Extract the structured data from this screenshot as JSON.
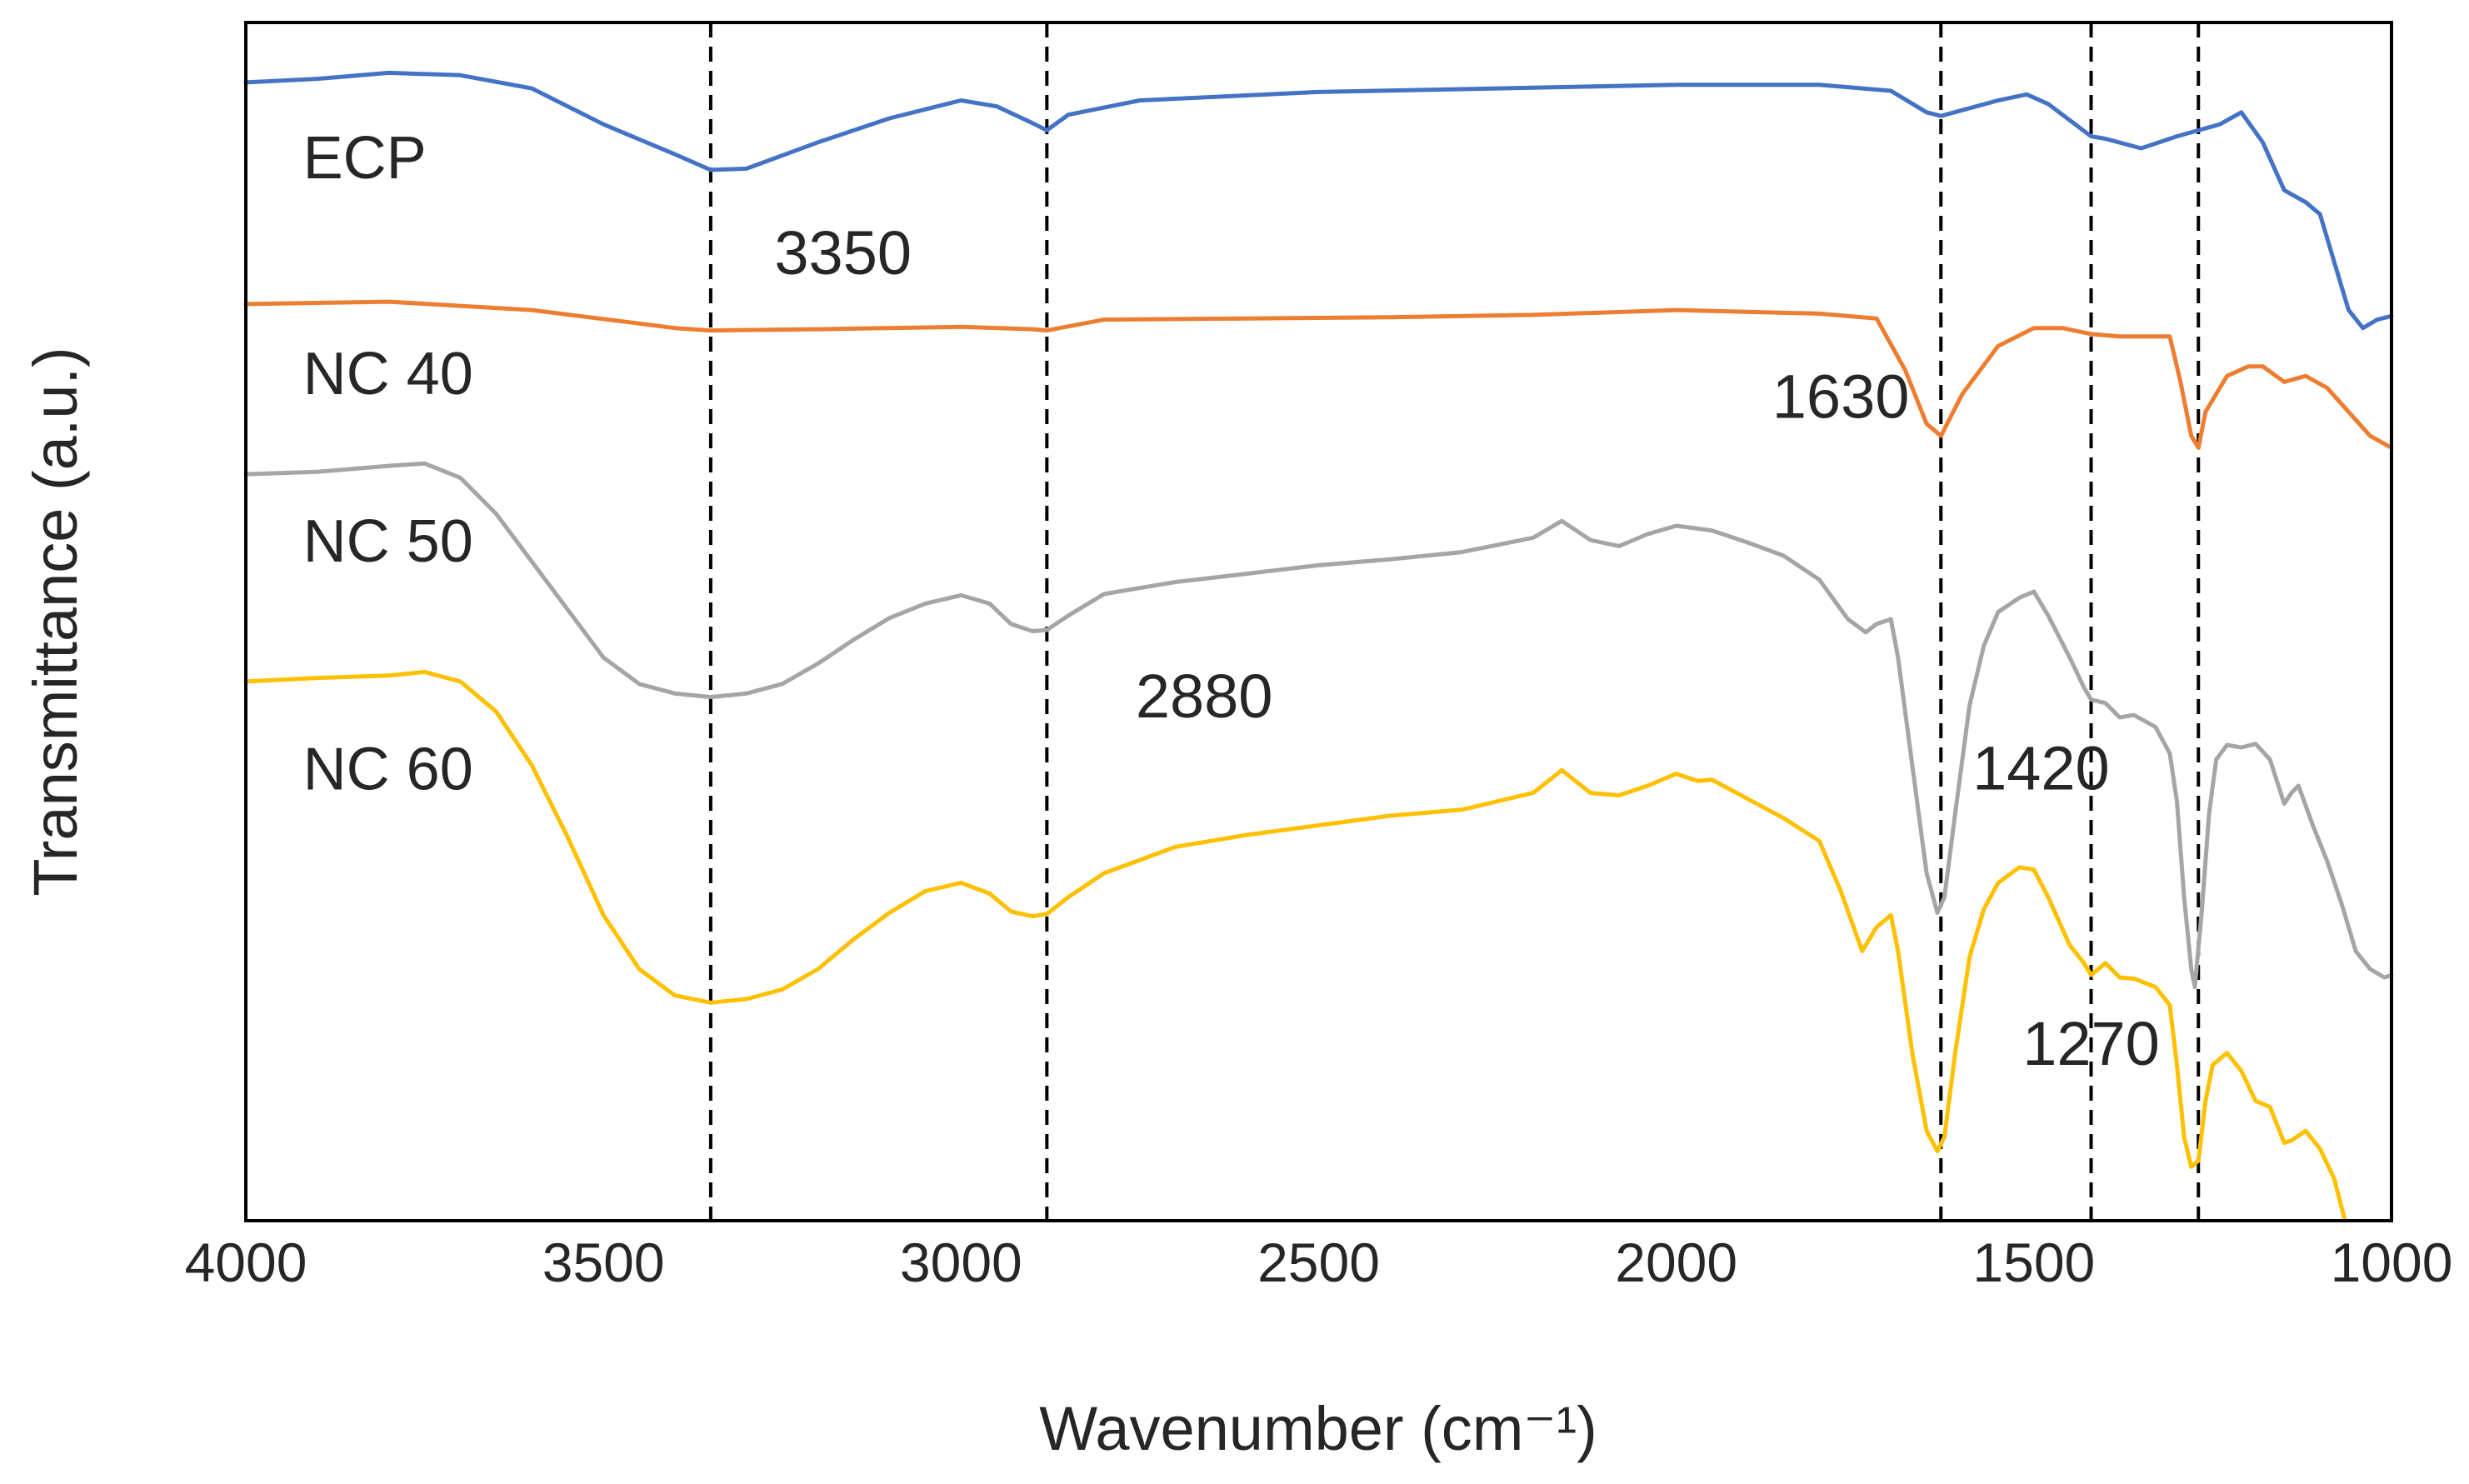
{
  "chart_data": {
    "type": "line",
    "title": "",
    "xlabel": "Wavenumber (cm⁻¹)",
    "ylabel": "Transmittance (a.u.)",
    "xlim": [
      4000,
      1000
    ],
    "x_reversed": true,
    "xticks": [
      4000,
      3500,
      3000,
      2500,
      2000,
      1500,
      1000
    ],
    "xtick_labels": [
      "4000",
      "3500",
      "3000",
      "2500",
      "2000",
      "1500",
      "1000"
    ],
    "ylim": [
      0,
      100
    ],
    "yticks_shown": false,
    "grid": false,
    "reference_lines": [
      3350,
      2880,
      1630,
      1420,
      1270
    ],
    "annotations": [
      {
        "text": "3350",
        "x": 3165,
        "y": 79
      },
      {
        "text": "2880",
        "x": 2660,
        "y": 42
      },
      {
        "text": "1630",
        "x": 1770,
        "y": 67
      },
      {
        "text": "1420",
        "x": 1490,
        "y": 36
      },
      {
        "text": "1270",
        "x": 1420,
        "y": 13
      }
    ],
    "series": [
      {
        "name": "ECP",
        "label": "ECP",
        "color": "#4472C4",
        "label_x": 3920,
        "label_y": 87,
        "points": [
          [
            4000,
            95
          ],
          [
            3900,
            95.3
          ],
          [
            3800,
            95.8
          ],
          [
            3700,
            95.6
          ],
          [
            3600,
            94.5
          ],
          [
            3500,
            91.5
          ],
          [
            3400,
            89
          ],
          [
            3350,
            87.7
          ],
          [
            3300,
            87.8
          ],
          [
            3200,
            90
          ],
          [
            3100,
            92
          ],
          [
            3000,
            93.5
          ],
          [
            2950,
            93
          ],
          [
            2900,
            91.6
          ],
          [
            2880,
            91
          ],
          [
            2850,
            92.3
          ],
          [
            2750,
            93.5
          ],
          [
            2500,
            94.2
          ],
          [
            2250,
            94.5
          ],
          [
            2000,
            94.8
          ],
          [
            1800,
            94.8
          ],
          [
            1700,
            94.3
          ],
          [
            1650,
            92.5
          ],
          [
            1630,
            92.2
          ],
          [
            1550,
            93.5
          ],
          [
            1510,
            94
          ],
          [
            1480,
            93.2
          ],
          [
            1420,
            90.5
          ],
          [
            1400,
            90.3
          ],
          [
            1350,
            89.5
          ],
          [
            1300,
            90.5
          ],
          [
            1270,
            91
          ],
          [
            1240,
            91.5
          ],
          [
            1210,
            92.5
          ],
          [
            1180,
            90
          ],
          [
            1150,
            86
          ],
          [
            1120,
            85
          ],
          [
            1100,
            84
          ],
          [
            1080,
            80
          ],
          [
            1060,
            76
          ],
          [
            1040,
            74.5
          ],
          [
            1020,
            75.2
          ],
          [
            1000,
            75.5
          ]
        ]
      },
      {
        "name": "NC 40",
        "label": "NC 40",
        "color": "#ED7D31",
        "label_x": 3920,
        "label_y": 69,
        "points": [
          [
            4000,
            76.5
          ],
          [
            3800,
            76.7
          ],
          [
            3600,
            76
          ],
          [
            3400,
            74.5
          ],
          [
            3350,
            74.3
          ],
          [
            3200,
            74.4
          ],
          [
            3000,
            74.6
          ],
          [
            2900,
            74.4
          ],
          [
            2880,
            74.3
          ],
          [
            2800,
            75.2
          ],
          [
            2600,
            75.3
          ],
          [
            2400,
            75.4
          ],
          [
            2200,
            75.6
          ],
          [
            2000,
            76
          ],
          [
            1800,
            75.7
          ],
          [
            1720,
            75.3
          ],
          [
            1680,
            71
          ],
          [
            1650,
            66.5
          ],
          [
            1630,
            65.5
          ],
          [
            1600,
            69
          ],
          [
            1550,
            73
          ],
          [
            1500,
            74.5
          ],
          [
            1460,
            74.5
          ],
          [
            1420,
            74
          ],
          [
            1380,
            73.8
          ],
          [
            1310,
            73.8
          ],
          [
            1295,
            70
          ],
          [
            1280,
            65.5
          ],
          [
            1270,
            64.5
          ],
          [
            1260,
            67.5
          ],
          [
            1230,
            70.5
          ],
          [
            1200,
            71.3
          ],
          [
            1180,
            71.3
          ],
          [
            1150,
            70
          ],
          [
            1120,
            70.5
          ],
          [
            1090,
            69.5
          ],
          [
            1060,
            67.5
          ],
          [
            1030,
            65.5
          ],
          [
            1000,
            64.5
          ]
        ]
      },
      {
        "name": "NC 50",
        "label": "NC 50",
        "color": "#A5A5A5",
        "label_x": 3920,
        "label_y": 55,
        "points": [
          [
            4000,
            62.3
          ],
          [
            3900,
            62.5
          ],
          [
            3800,
            63
          ],
          [
            3750,
            63.2
          ],
          [
            3700,
            62
          ],
          [
            3650,
            59
          ],
          [
            3600,
            55
          ],
          [
            3550,
            51
          ],
          [
            3500,
            47
          ],
          [
            3450,
            44.8
          ],
          [
            3400,
            44
          ],
          [
            3350,
            43.7
          ],
          [
            3300,
            44
          ],
          [
            3250,
            44.8
          ],
          [
            3200,
            46.5
          ],
          [
            3150,
            48.5
          ],
          [
            3100,
            50.3
          ],
          [
            3050,
            51.5
          ],
          [
            3000,
            52.2
          ],
          [
            2960,
            51.5
          ],
          [
            2930,
            49.8
          ],
          [
            2900,
            49.2
          ],
          [
            2880,
            49.3
          ],
          [
            2850,
            50.5
          ],
          [
            2800,
            52.3
          ],
          [
            2700,
            53.3
          ],
          [
            2600,
            54
          ],
          [
            2500,
            54.7
          ],
          [
            2400,
            55.2
          ],
          [
            2300,
            55.8
          ],
          [
            2200,
            57
          ],
          [
            2160,
            58.4
          ],
          [
            2120,
            56.8
          ],
          [
            2080,
            56.3
          ],
          [
            2040,
            57.3
          ],
          [
            2000,
            58
          ],
          [
            1950,
            57.6
          ],
          [
            1900,
            56.6
          ],
          [
            1850,
            55.5
          ],
          [
            1800,
            53.5
          ],
          [
            1760,
            50.2
          ],
          [
            1735,
            49.1
          ],
          [
            1720,
            49.8
          ],
          [
            1700,
            50.2
          ],
          [
            1690,
            47
          ],
          [
            1670,
            38
          ],
          [
            1650,
            29
          ],
          [
            1635,
            25.7
          ],
          [
            1625,
            27
          ],
          [
            1610,
            34
          ],
          [
            1590,
            43
          ],
          [
            1570,
            48
          ],
          [
            1550,
            50.8
          ],
          [
            1520,
            52
          ],
          [
            1500,
            52.5
          ],
          [
            1480,
            50.5
          ],
          [
            1450,
            47
          ],
          [
            1430,
            44.5
          ],
          [
            1420,
            43.5
          ],
          [
            1400,
            43.2
          ],
          [
            1380,
            42
          ],
          [
            1360,
            42.2
          ],
          [
            1330,
            41.2
          ],
          [
            1310,
            39
          ],
          [
            1300,
            35
          ],
          [
            1290,
            27
          ],
          [
            1280,
            21
          ],
          [
            1275,
            19.5
          ],
          [
            1265,
            26
          ],
          [
            1255,
            34
          ],
          [
            1245,
            38.5
          ],
          [
            1230,
            39.7
          ],
          [
            1210,
            39.5
          ],
          [
            1190,
            39.8
          ],
          [
            1170,
            38.5
          ],
          [
            1150,
            34.8
          ],
          [
            1140,
            35.7
          ],
          [
            1130,
            36.3
          ],
          [
            1110,
            33
          ],
          [
            1090,
            30
          ],
          [
            1070,
            26.5
          ],
          [
            1050,
            22.5
          ],
          [
            1030,
            21
          ],
          [
            1010,
            20.3
          ],
          [
            1000,
            20.5
          ]
        ]
      },
      {
        "name": "NC 60",
        "label": "NC 60",
        "color": "#FFC000",
        "label_x": 3920,
        "label_y": 36,
        "points": [
          [
            4000,
            45
          ],
          [
            3900,
            45.3
          ],
          [
            3800,
            45.5
          ],
          [
            3750,
            45.8
          ],
          [
            3700,
            45
          ],
          [
            3650,
            42.5
          ],
          [
            3600,
            38
          ],
          [
            3550,
            32
          ],
          [
            3500,
            25.5
          ],
          [
            3450,
            21
          ],
          [
            3400,
            18.8
          ],
          [
            3350,
            18.2
          ],
          [
            3300,
            18.5
          ],
          [
            3250,
            19.3
          ],
          [
            3200,
            21
          ],
          [
            3150,
            23.5
          ],
          [
            3100,
            25.7
          ],
          [
            3050,
            27.5
          ],
          [
            3000,
            28.2
          ],
          [
            2960,
            27.3
          ],
          [
            2930,
            25.8
          ],
          [
            2900,
            25.4
          ],
          [
            2880,
            25.6
          ],
          [
            2850,
            27
          ],
          [
            2800,
            29
          ],
          [
            2700,
            31.2
          ],
          [
            2600,
            32.2
          ],
          [
            2500,
            33
          ],
          [
            2400,
            33.8
          ],
          [
            2300,
            34.3
          ],
          [
            2200,
            35.7
          ],
          [
            2160,
            37.6
          ],
          [
            2120,
            35.7
          ],
          [
            2080,
            35.5
          ],
          [
            2040,
            36.3
          ],
          [
            2000,
            37.3
          ],
          [
            1970,
            36.7
          ],
          [
            1950,
            36.8
          ],
          [
            1900,
            35.2
          ],
          [
            1850,
            33.6
          ],
          [
            1800,
            31.7
          ],
          [
            1770,
            27.5
          ],
          [
            1740,
            22.5
          ],
          [
            1720,
            24.5
          ],
          [
            1700,
            25.5
          ],
          [
            1690,
            22.5
          ],
          [
            1670,
            14
          ],
          [
            1650,
            7.5
          ],
          [
            1635,
            5.8
          ],
          [
            1625,
            7
          ],
          [
            1610,
            14
          ],
          [
            1590,
            22
          ],
          [
            1570,
            26
          ],
          [
            1550,
            28.2
          ],
          [
            1520,
            29.5
          ],
          [
            1500,
            29.3
          ],
          [
            1480,
            27
          ],
          [
            1450,
            23
          ],
          [
            1430,
            21.5
          ],
          [
            1420,
            20.5
          ],
          [
            1400,
            21.5
          ],
          [
            1380,
            20.3
          ],
          [
            1360,
            20.2
          ],
          [
            1330,
            19.5
          ],
          [
            1310,
            18
          ],
          [
            1300,
            13
          ],
          [
            1290,
            7
          ],
          [
            1280,
            4.5
          ],
          [
            1270,
            5
          ],
          [
            1260,
            10
          ],
          [
            1250,
            13
          ],
          [
            1230,
            14
          ],
          [
            1210,
            12.5
          ],
          [
            1190,
            10
          ],
          [
            1170,
            9.5
          ],
          [
            1150,
            6.5
          ],
          [
            1140,
            6.7
          ],
          [
            1120,
            7.5
          ],
          [
            1100,
            6
          ],
          [
            1080,
            3.5
          ],
          [
            1065,
            0
          ]
        ]
      }
    ]
  }
}
